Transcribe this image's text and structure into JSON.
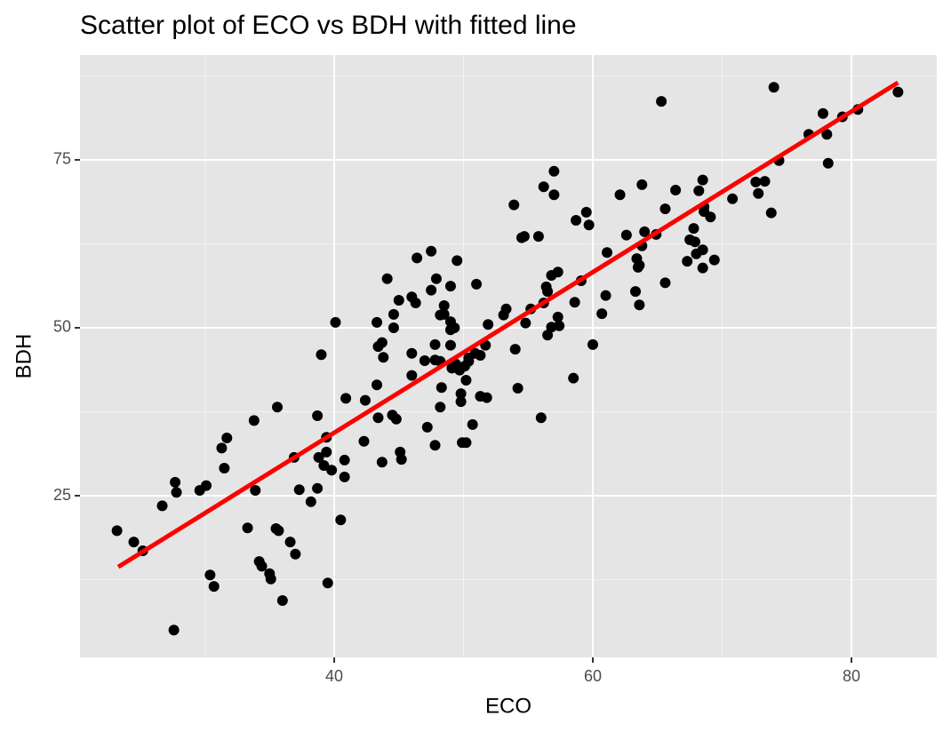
{
  "chart_data": {
    "type": "scatter",
    "title": "Scatter plot of ECO vs BDH with fitted line",
    "xlabel": "ECO",
    "ylabel": "BDH",
    "xlim": [
      20.34,
      86.6
    ],
    "ylim": [
      0.93,
      90.6
    ],
    "xticks": [
      40,
      60,
      80
    ],
    "yticks": [
      25,
      50,
      75
    ],
    "xminor": [
      30,
      50,
      70
    ],
    "yminor": [
      12.5,
      37.5,
      62.5,
      87.5
    ],
    "grid": true,
    "color": "#000000",
    "x": [
      23.2,
      24.5,
      25.2,
      26.7,
      27.7,
      27.8,
      27.6,
      29.6,
      30.1,
      30.4,
      30.7,
      31.3,
      31.7,
      31.5,
      33.3,
      33.8,
      33.9,
      34.2,
      34.4,
      35.0,
      35.1,
      35.6,
      35.7,
      35.5,
      36.0,
      36.6,
      36.9,
      37.0,
      37.3,
      38.2,
      38.7,
      38.7,
      38.8,
      39.0,
      39.2,
      39.4,
      39.4,
      39.5,
      39.8,
      40.1,
      40.5,
      40.8,
      40.8,
      40.9,
      42.3,
      42.4,
      43.3,
      43.3,
      43.4,
      43.4,
      43.7,
      43.7,
      43.8,
      44.1,
      44.5,
      44.6,
      44.6,
      44.8,
      45.0,
      45.1,
      45.2,
      46.0,
      46.0,
      46.0,
      46.3,
      46.4,
      47.0,
      47.2,
      47.5,
      47.5,
      47.8,
      47.8,
      47.8,
      47.9,
      48.2,
      48.2,
      48.2,
      48.3,
      48.5,
      48.5,
      49.0,
      49.0,
      49.0,
      49.0,
      49.1,
      49.3,
      49.4,
      49.5,
      49.7,
      49.8,
      49.8,
      49.9,
      50.1,
      50.2,
      50.2,
      50.4,
      50.4,
      50.7,
      50.9,
      51.0,
      51.3,
      51.3,
      51.7,
      51.8,
      51.9,
      53.1,
      53.3,
      53.9,
      54.0,
      54.2,
      54.5,
      54.7,
      54.8,
      55.2,
      55.8,
      56.0,
      56.2,
      56.2,
      56.4,
      56.5,
      56.5,
      56.8,
      56.8,
      57.0,
      57.0,
      57.3,
      57.3,
      57.4,
      58.5,
      58.6,
      58.7,
      59.1,
      59.5,
      59.7,
      60.0,
      60.7,
      61.0,
      61.1,
      62.1,
      62.6,
      63.3,
      63.4,
      63.5,
      63.6,
      63.6,
      63.8,
      63.8,
      64.0,
      64.9,
      65.3,
      65.6,
      65.6,
      66.4,
      67.3,
      67.5,
      67.8,
      67.9,
      68.0,
      68.2,
      68.5,
      68.5,
      68.5,
      68.6,
      68.6,
      69.1,
      69.4,
      70.8,
      72.6,
      72.8,
      73.3,
      73.8,
      74.0,
      74.4,
      76.7,
      77.8,
      78.1,
      78.2,
      79.3,
      80.5,
      83.6
    ],
    "values": [
      19.8,
      18.1,
      16.8,
      23.5,
      27.0,
      25.5,
      5.0,
      25.8,
      26.5,
      13.2,
      11.5,
      32.1,
      33.6,
      29.1,
      20.2,
      36.2,
      25.8,
      15.2,
      14.5,
      13.4,
      12.6,
      38.2,
      19.8,
      20.1,
      9.4,
      18.1,
      30.7,
      16.3,
      25.9,
      24.1,
      36.9,
      26.1,
      30.7,
      46.0,
      29.5,
      31.5,
      33.7,
      12.0,
      28.8,
      50.8,
      21.4,
      27.8,
      30.3,
      39.5,
      33.1,
      39.2,
      50.8,
      41.5,
      47.2,
      36.6,
      47.8,
      30.0,
      45.6,
      57.3,
      37.0,
      50.0,
      52.0,
      36.4,
      54.1,
      31.5,
      30.4,
      54.6,
      46.2,
      42.9,
      53.7,
      60.4,
      45.1,
      35.2,
      61.4,
      55.6,
      45.2,
      47.5,
      32.5,
      57.3,
      45.0,
      51.9,
      38.2,
      41.1,
      52.0,
      53.3,
      56.2,
      47.4,
      50.9,
      49.7,
      44.0,
      50.0,
      44.6,
      60.0,
      43.7,
      39.0,
      40.2,
      32.9,
      44.3,
      32.9,
      42.2,
      45.0,
      45.5,
      35.6,
      46.2,
      56.5,
      45.9,
      39.8,
      47.4,
      39.6,
      50.5,
      51.9,
      52.8,
      68.3,
      46.8,
      41.0,
      63.4,
      63.6,
      50.7,
      52.8,
      63.6,
      36.6,
      71.0,
      53.7,
      56.1,
      55.4,
      48.9,
      50.1,
      57.8,
      73.3,
      69.8,
      51.6,
      58.3,
      50.3,
      42.5,
      53.8,
      66.0,
      57.0,
      67.2,
      65.3,
      47.5,
      52.1,
      54.8,
      61.2,
      69.8,
      63.8,
      55.4,
      60.3,
      59.0,
      59.3,
      53.4,
      62.2,
      71.3,
      64.3,
      63.9,
      83.7,
      67.7,
      56.7,
      70.5,
      59.9,
      63.1,
      64.8,
      62.8,
      61.0,
      70.4,
      61.6,
      72.0,
      58.9,
      68.0,
      67.3,
      66.5,
      60.1,
      69.2,
      71.7,
      70.0,
      71.8,
      67.1,
      85.8,
      74.9,
      78.8,
      81.9,
      78.8,
      74.5,
      81.4,
      82.5,
      85.1
    ],
    "fit": {
      "x": [
        23.3,
        83.6
      ],
      "y": [
        14.4,
        86.5
      ],
      "color": "#ff0000"
    }
  }
}
